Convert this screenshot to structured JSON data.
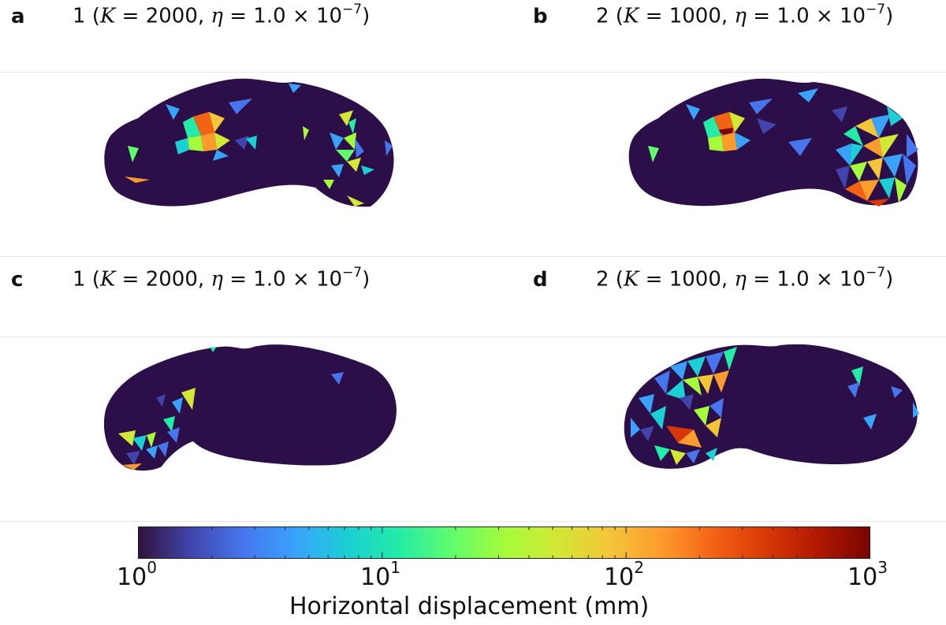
{
  "panels": [
    {
      "letter": "a",
      "prefix": "1 (",
      "k_symbol": "K",
      "k_text": " = 2000, ",
      "eta_symbol": "η",
      "eta_text": " = 1.0 × 10",
      "exponent": "−7",
      "suffix": ")"
    },
    {
      "letter": "b",
      "prefix": "2 (",
      "k_symbol": "K",
      "k_text": " = 1000, ",
      "eta_symbol": "η",
      "eta_text": " = 1.0 × 10",
      "exponent": "−7",
      "suffix": ")"
    },
    {
      "letter": "c",
      "prefix": "1 (",
      "k_symbol": "K",
      "k_text": " = 2000, ",
      "eta_symbol": "η",
      "eta_text": " = 1.0 × 10",
      "exponent": "−7",
      "suffix": ")"
    },
    {
      "letter": "d",
      "prefix": "2 (",
      "k_symbol": "K",
      "k_text": " = 1000, ",
      "eta_symbol": "η",
      "eta_text": " = 1.0 × 10",
      "exponent": "−7",
      "suffix": ")"
    }
  ],
  "colorbar": {
    "label": "Horizontal displacement (mm)",
    "scale": "log",
    "range": [
      1,
      1000
    ],
    "ticks": [
      {
        "base": "10",
        "exp": "0"
      },
      {
        "base": "10",
        "exp": "1"
      },
      {
        "base": "10",
        "exp": "2"
      },
      {
        "base": "10",
        "exp": "3"
      }
    ],
    "colormap": [
      "#30123b",
      "#4145ab",
      "#4675ed",
      "#39a2fc",
      "#1bcfd4",
      "#24eca6",
      "#61fc6c",
      "#a4fc3b",
      "#d1e834",
      "#f3c63a",
      "#fe9b2d",
      "#f36315",
      "#d93806",
      "#b11901",
      "#7a0402"
    ],
    "background_color": "#2c0f48"
  }
}
